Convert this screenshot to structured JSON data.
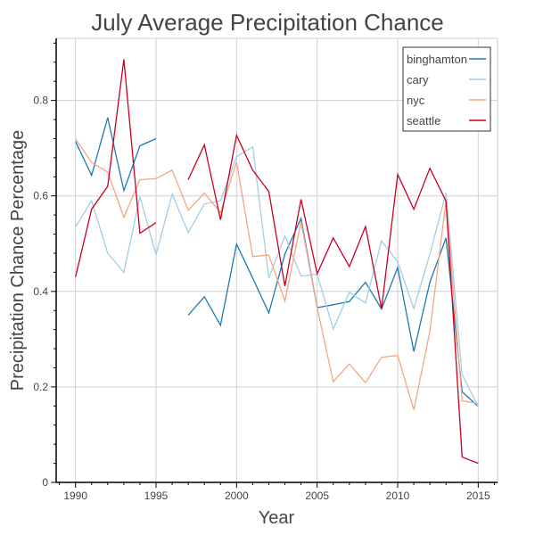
{
  "chart_data": {
    "type": "line",
    "title": "July Average Precipitation Chance",
    "xlabel": "Year",
    "ylabel": "Precipitation Chance Percentage",
    "xlim": [
      1988.8,
      2016.2
    ],
    "ylim": [
      0,
      0.93
    ],
    "xticks": [
      1990,
      1995,
      2000,
      2005,
      2010,
      2015
    ],
    "xtick_labels": [
      "1990",
      "1995",
      "2000",
      "2005",
      "2010",
      "2015"
    ],
    "yticks": [
      0,
      0.2,
      0.4,
      0.6,
      0.8
    ],
    "ytick_labels": [
      "0",
      "0.2",
      "0.4",
      "0.6",
      "0.8"
    ],
    "grid": true,
    "legend_position": "top-right",
    "x": [
      1990,
      1991,
      1992,
      1993,
      1994,
      1995,
      1996,
      1997,
      1998,
      1999,
      2000,
      2001,
      2002,
      2003,
      2004,
      2005,
      2006,
      2007,
      2008,
      2009,
      2010,
      2011,
      2012,
      2013,
      2014,
      2015
    ],
    "series": [
      {
        "name": "binghamton",
        "color": "#1f78b4",
        "values": [
          0.714,
          0.643,
          0.764,
          0.611,
          0.705,
          0.72,
          null,
          0.35,
          0.389,
          0.329,
          0.499,
          0.428,
          0.355,
          0.478,
          0.553,
          0.366,
          0.372,
          0.379,
          0.419,
          0.363,
          0.45,
          0.274,
          0.419,
          0.512,
          0.19,
          0.159
        ]
      },
      {
        "name": "cary",
        "color": "#a6cee3",
        "values": [
          0.535,
          0.59,
          0.48,
          0.44,
          0.598,
          0.477,
          0.604,
          0.523,
          0.583,
          0.59,
          0.682,
          0.703,
          0.428,
          0.516,
          0.432,
          0.436,
          0.321,
          0.398,
          0.376,
          0.506,
          0.462,
          0.364,
          0.478,
          0.606,
          0.226,
          0.159
        ]
      },
      {
        "name": "nyc",
        "color": "#f4a582",
        "values": [
          0.72,
          0.67,
          0.65,
          0.555,
          0.634,
          0.636,
          0.654,
          0.57,
          0.606,
          0.565,
          0.671,
          0.473,
          0.476,
          0.38,
          0.546,
          0.366,
          0.211,
          0.248,
          0.209,
          0.262,
          0.266,
          0.152,
          0.316,
          0.59,
          0.171,
          0.165
        ]
      },
      {
        "name": "seattle",
        "color": "#ca0020",
        "values": [
          0.43,
          0.572,
          0.62,
          0.886,
          0.522,
          0.544,
          null,
          0.634,
          0.707,
          0.55,
          0.727,
          0.654,
          0.609,
          0.411,
          0.593,
          0.437,
          0.512,
          0.452,
          0.536,
          0.364,
          0.645,
          0.572,
          0.658,
          0.589,
          0.053,
          0.04
        ]
      }
    ]
  }
}
